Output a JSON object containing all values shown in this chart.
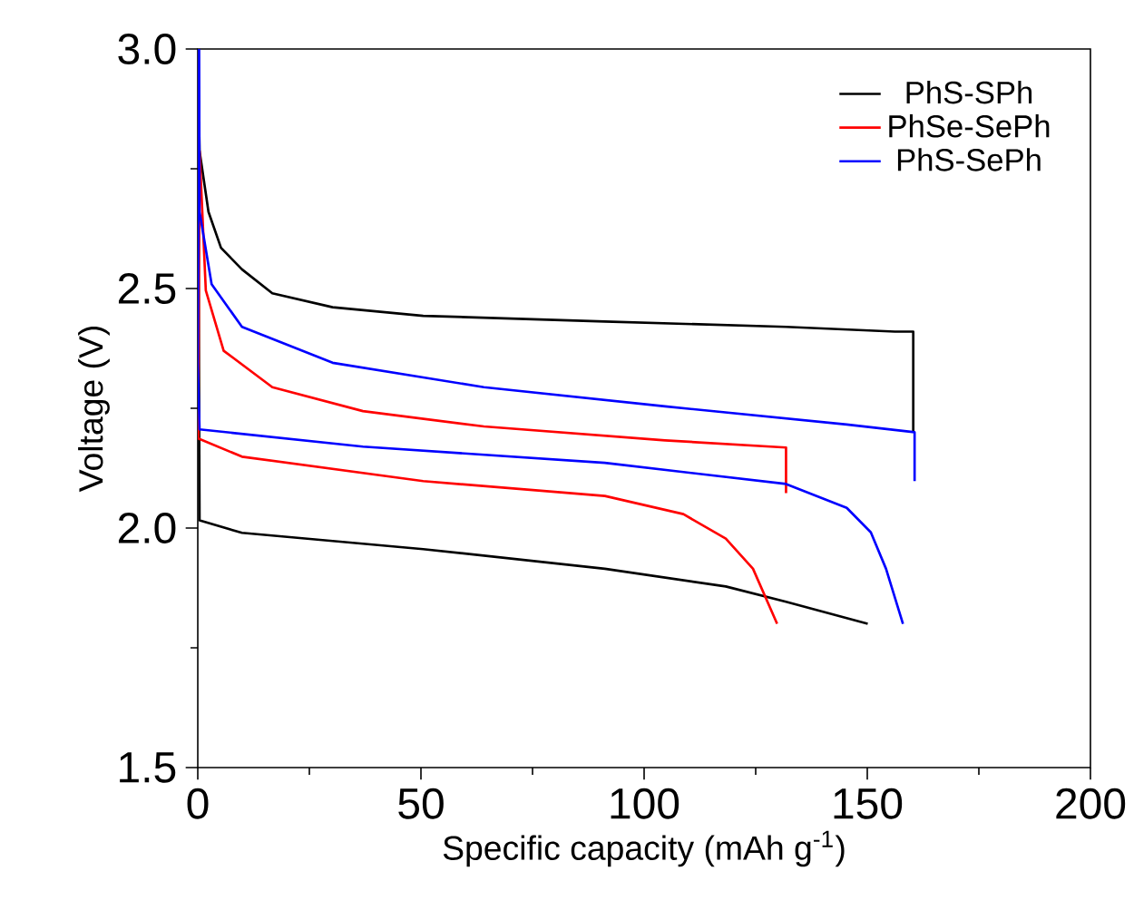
{
  "chart_data": {
    "type": "line",
    "xlabel": "Specific capacity (mAh g$^{-1}$)",
    "ylabel": "Voltage (V)",
    "xlim": [
      0,
      200
    ],
    "ylim": [
      1.5,
      3.0
    ],
    "xticks": [
      0,
      50,
      100,
      150,
      200
    ],
    "yticks": [
      {
        "value": 1.5,
        "label": "1.5"
      },
      {
        "value": 2.0,
        "label": "2.0"
      },
      {
        "value": 2.5,
        "label": "2.5"
      },
      {
        "value": 3.0,
        "label": "3.0"
      }
    ],
    "grid": false,
    "legend": "top right",
    "line_style": "solid",
    "marker": "none",
    "series": [
      {
        "name": "PhS-SPh",
        "color": "#000000",
        "x": [
          150.1,
          131.8,
          118.3,
          91.2,
          50.5,
          9.9,
          0.4,
          0,
          0.4,
          2.4,
          5.2,
          9.9,
          16.7,
          30.2,
          50.5,
          91.2,
          131.8,
          156.2,
          160.3,
          160.3
        ],
        "values": [
          1.8,
          1.846,
          1.878,
          1.915,
          1.956,
          1.99,
          2.016,
          3.0,
          2.787,
          2.66,
          2.585,
          2.54,
          2.49,
          2.461,
          2.443,
          2.431,
          2.42,
          2.41,
          2.41,
          2.2
        ]
      },
      {
        "name": "PhSe-SePh",
        "color": "#ff0000",
        "x": [
          129.8,
          124.4,
          118.3,
          108.8,
          91.2,
          50.5,
          9.9,
          0.1,
          0.4,
          1.8,
          5.8,
          16.7,
          37,
          64.1,
          104.7,
          131.8,
          131.8
        ],
        "values": [
          1.8,
          1.915,
          1.978,
          2.029,
          2.067,
          2.098,
          2.149,
          2.187,
          2.787,
          2.496,
          2.37,
          2.294,
          2.244,
          2.212,
          2.183,
          2.168,
          2.073
        ]
      },
      {
        "name": "PhS-SePh",
        "color": "#0000ff",
        "x": [
          158,
          154.2,
          150.8,
          145.4,
          131.8,
          91.2,
          37,
          0.4,
          0,
          0.3,
          0.4,
          3.1,
          9.9,
          30.2,
          64.1,
          104.7,
          145.4,
          160.6,
          160.6
        ],
        "values": [
          1.8,
          1.915,
          1.991,
          2.042,
          2.092,
          2.136,
          2.17,
          2.206,
          2.345,
          3.0,
          2.66,
          2.509,
          2.42,
          2.345,
          2.294,
          2.254,
          2.216,
          2.2,
          2.098
        ]
      }
    ]
  }
}
